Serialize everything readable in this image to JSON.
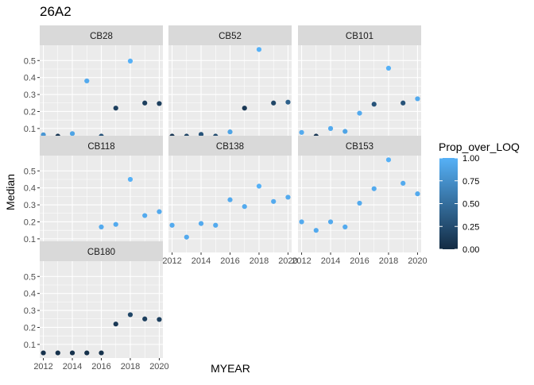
{
  "chart_data": {
    "type": "scatter",
    "title": "26A2",
    "xlabel": "MYEAR",
    "ylabel": "Median",
    "xlim": [
      2011.75,
      2020.25
    ],
    "ylim": [
      0.02,
      0.59
    ],
    "x_ticks": [
      2012,
      2014,
      2016,
      2018,
      2020
    ],
    "x_tick_labels": [
      "2012",
      "2014",
      "2016",
      "2018",
      "2020"
    ],
    "y_ticks": [
      0.1,
      0.2,
      0.3,
      0.4,
      0.5
    ],
    "y_tick_labels": [
      "0.1",
      "0.2",
      "0.3",
      "0.4",
      "0.5"
    ],
    "grid": true,
    "facets": [
      "CB28",
      "CB52",
      "CB101",
      "CB118",
      "CB138",
      "CB153",
      "CB180"
    ],
    "color_scale": {
      "title": "Prop_over_LOQ",
      "low": "#132B43",
      "high": "#56B1F7",
      "ticks": [
        0.0,
        0.25,
        0.5,
        0.75,
        1.0
      ],
      "tick_labels": [
        "0.00",
        "0.25",
        "0.50",
        "0.75",
        "1.00"
      ],
      "legend_position": "right"
    },
    "series": [
      {
        "name": "CB28",
        "x": [
          2012,
          2013,
          2014,
          2015,
          2016,
          2017,
          2018,
          2019,
          2020
        ],
        "y": [
          0.063,
          0.055,
          0.07,
          0.38,
          0.055,
          0.22,
          0.497,
          0.25,
          0.247
        ],
        "prop": [
          0.8,
          0.1,
          0.9,
          0.95,
          0.3,
          0.15,
          1.0,
          0.15,
          0.15
        ]
      },
      {
        "name": "CB52",
        "x": [
          2012,
          2013,
          2014,
          2015,
          2016,
          2017,
          2018,
          2019,
          2020
        ],
        "y": [
          0.055,
          0.055,
          0.065,
          0.055,
          0.08,
          0.22,
          0.565,
          0.25,
          0.255
        ],
        "prop": [
          0.1,
          0.2,
          0.3,
          0.25,
          0.9,
          0.1,
          1.0,
          0.2,
          0.4
        ]
      },
      {
        "name": "CB101",
        "x": [
          2012,
          2013,
          2014,
          2015,
          2016,
          2017,
          2018,
          2019,
          2020
        ],
        "y": [
          0.077,
          0.055,
          0.1,
          0.083,
          0.19,
          0.243,
          0.455,
          0.25,
          0.275
        ],
        "prop": [
          0.95,
          0.1,
          0.95,
          0.9,
          0.95,
          0.3,
          1.0,
          0.3,
          0.95
        ]
      },
      {
        "name": "CB118",
        "x": [
          2012,
          2013,
          2014,
          2015,
          2016,
          2017,
          2018,
          2019,
          2020
        ],
        "y": [
          0.065,
          0.05,
          0.072,
          0.067,
          0.17,
          0.185,
          0.45,
          0.237,
          0.26
        ],
        "prop": [
          0.9,
          0.1,
          0.9,
          0.9,
          0.95,
          0.95,
          1.0,
          0.95,
          0.95
        ]
      },
      {
        "name": "CB138",
        "x": [
          2012,
          2013,
          2014,
          2015,
          2016,
          2017,
          2018,
          2019,
          2020
        ],
        "y": [
          0.18,
          0.11,
          0.19,
          0.18,
          0.33,
          0.29,
          0.41,
          0.32,
          0.345
        ],
        "prop": [
          0.95,
          0.95,
          0.95,
          0.95,
          0.95,
          0.95,
          1.0,
          0.95,
          0.95
        ]
      },
      {
        "name": "CB153",
        "x": [
          2012,
          2013,
          2014,
          2015,
          2016,
          2017,
          2018,
          2019,
          2020
        ],
        "y": [
          0.2,
          0.15,
          0.2,
          0.17,
          0.31,
          0.395,
          0.565,
          0.427,
          0.365
        ],
        "prop": [
          0.95,
          0.95,
          0.95,
          0.95,
          0.95,
          0.95,
          1.0,
          0.95,
          0.95
        ]
      },
      {
        "name": "CB180",
        "x": [
          2012,
          2013,
          2014,
          2015,
          2016,
          2017,
          2018,
          2019,
          2020
        ],
        "y": [
          0.05,
          0.05,
          0.05,
          0.05,
          0.05,
          0.22,
          0.275,
          0.25,
          0.247
        ],
        "prop": [
          0.05,
          0.05,
          0.05,
          0.05,
          0.05,
          0.1,
          0.2,
          0.15,
          0.15
        ]
      }
    ]
  }
}
